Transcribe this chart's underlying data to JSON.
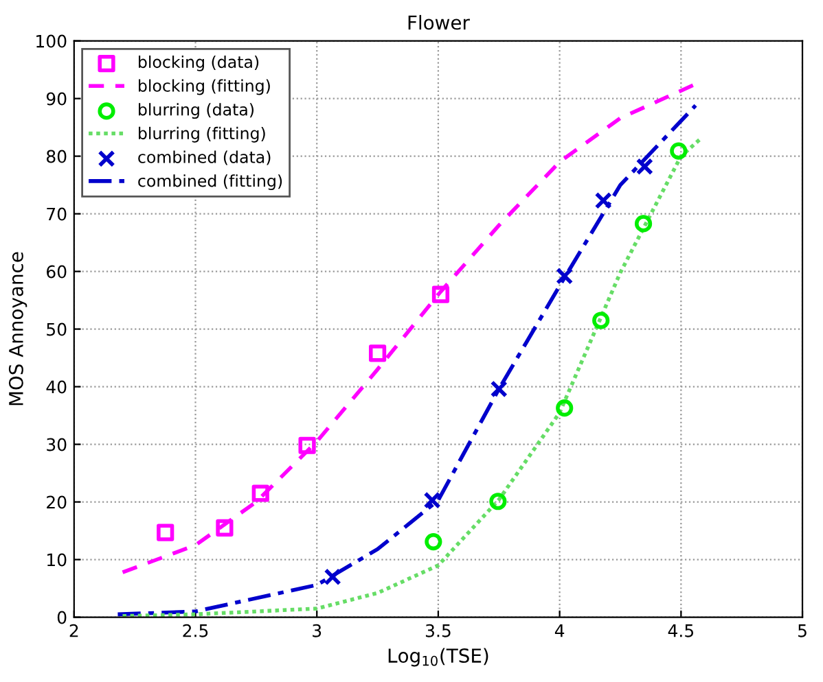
{
  "chart_data": {
    "type": "line",
    "title": "Flower",
    "xlabel": "Log$_{10}$(TSE)",
    "ylabel": "MOS Annoyance",
    "xlim": [
      2,
      5
    ],
    "ylim": [
      0,
      100
    ],
    "xticks": [
      2,
      2.5,
      3,
      3.5,
      4,
      4.5,
      5
    ],
    "yticks": [
      0,
      10,
      20,
      30,
      40,
      50,
      60,
      70,
      80,
      90,
      100
    ],
    "grid": true,
    "legend": "top left",
    "series": [
      {
        "name": "blocking (data)",
        "type": "scatter",
        "marker": "square",
        "color": "#ff00ff",
        "x": [
          2.376,
          2.62,
          2.768,
          2.96,
          3.25,
          3.51
        ],
        "values": [
          14.7,
          15.5,
          21.5,
          29.8,
          45.8,
          56
        ]
      },
      {
        "name": "blocking (fitting)",
        "line_style": "dashed",
        "color": "#ff00ff",
        "x": [
          2.2,
          2.5,
          2.75,
          3.0,
          3.25,
          3.5,
          3.75,
          4.0,
          4.25,
          4.57
        ],
        "values": [
          7.8,
          12.5,
          20,
          30.5,
          43,
          56,
          68,
          79,
          86.6,
          92.7
        ]
      },
      {
        "name": "blurring (data)",
        "type": "scatter",
        "marker": "circle",
        "color": "#00ee00",
        "x": [
          3.48,
          3.746,
          4.02,
          4.17,
          4.345,
          4.49
        ],
        "values": [
          13.1,
          20.1,
          36.3,
          51.5,
          68.3,
          80.9
        ]
      },
      {
        "name": "blurring (fitting)",
        "line_style": "dotted",
        "color": "#66dd66",
        "x": [
          2.2,
          2.5,
          3.0,
          3.25,
          3.5,
          3.75,
          4.0,
          4.25,
          4.5,
          4.58
        ],
        "values": [
          0.2,
          0.5,
          1.5,
          4.2,
          9,
          20.4,
          35.5,
          59.8,
          80,
          83
        ]
      },
      {
        "name": "combined (data)",
        "type": "scatter",
        "marker": "cross",
        "color": "#0000cc",
        "x": [
          3.065,
          3.475,
          3.75,
          4.02,
          4.18,
          4.35
        ],
        "values": [
          7.0,
          20.3,
          39.6,
          59.2,
          72.3,
          78.2
        ]
      },
      {
        "name": "combined (fitting)",
        "line_style": "dashdot",
        "color": "#0000cc",
        "x": [
          2.18,
          2.5,
          3.0,
          3.25,
          3.5,
          3.75,
          4.0,
          4.25,
          4.56
        ],
        "values": [
          0.5,
          1.0,
          5.6,
          11.8,
          20.3,
          39.6,
          57.5,
          75,
          88.8
        ]
      }
    ]
  }
}
